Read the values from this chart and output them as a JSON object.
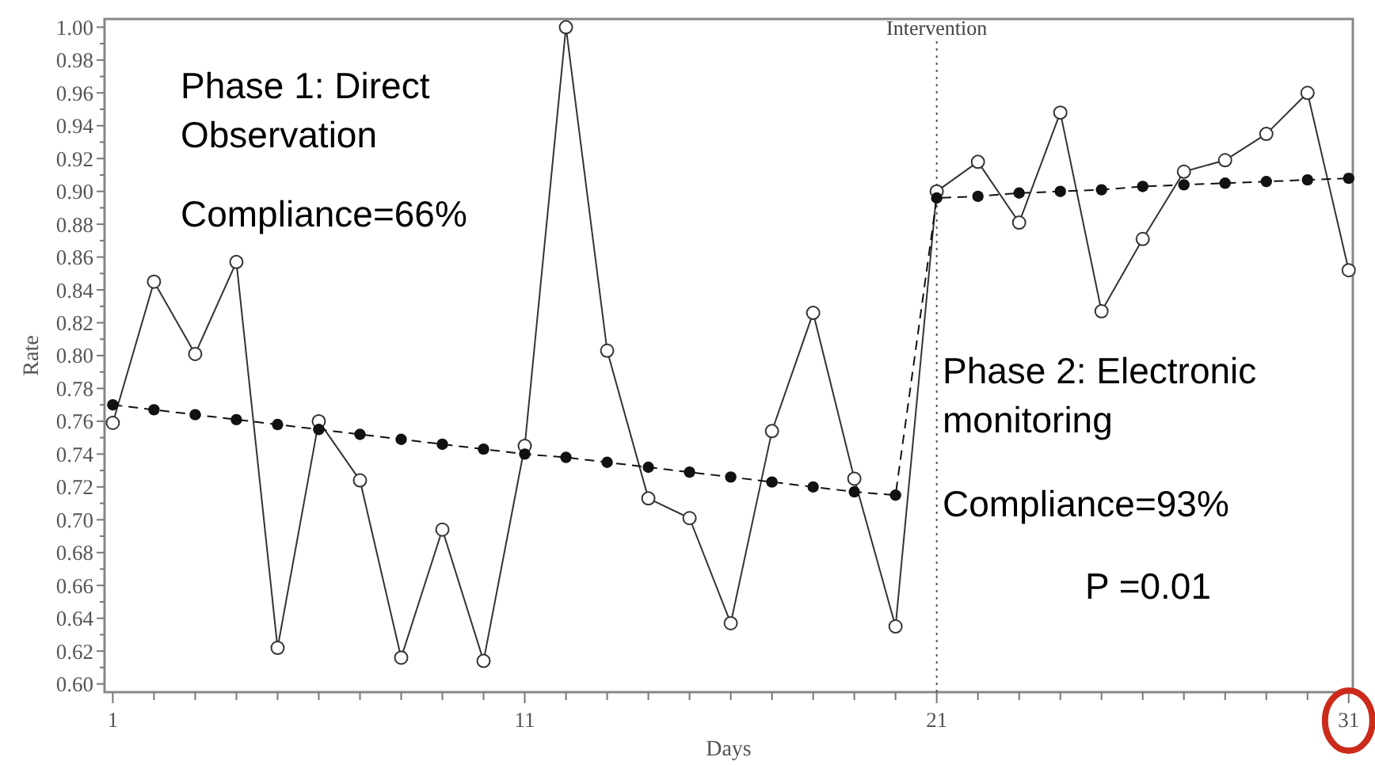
{
  "chart_data": {
    "type": "line",
    "xlabel": "Days",
    "ylabel": "Rate",
    "x": [
      1,
      2,
      3,
      4,
      5,
      6,
      7,
      8,
      9,
      10,
      11,
      12,
      13,
      14,
      15,
      16,
      17,
      18,
      19,
      20,
      21,
      22,
      23,
      24,
      25,
      26,
      27,
      28,
      29,
      30,
      31
    ],
    "series": [
      {
        "color": "#333333",
        "line_style": "solid",
        "values": [
          0.759,
          0.845,
          0.801,
          0.857,
          0.622,
          0.76,
          0.724,
          0.616,
          0.694,
          0.614,
          0.745,
          1.0,
          0.803,
          0.713,
          0.701,
          0.637,
          0.754,
          0.826,
          0.725,
          0.635,
          0.9,
          0.918,
          0.881,
          0.948,
          0.827,
          0.871,
          0.912,
          0.919,
          0.935,
          0.96,
          0.852
        ]
      },
      {
        "color": "#111111",
        "line_style": "dashed",
        "values": [
          0.77,
          0.767,
          0.764,
          0.761,
          0.758,
          0.755,
          0.752,
          0.749,
          0.746,
          0.743,
          0.74,
          0.738,
          0.735,
          0.732,
          0.729,
          0.726,
          0.723,
          0.72,
          0.717,
          0.715,
          0.896,
          0.897,
          0.899,
          0.9,
          0.901,
          0.903,
          0.904,
          0.905,
          0.906,
          0.907,
          0.908
        ]
      }
    ],
    "marker": "circle",
    "grid": false,
    "xlim": [
      0.8,
      31.1
    ],
    "ylim": [
      0.595,
      1.005
    ],
    "xticks": [
      1,
      {
        "value": 2,
        "label": null
      },
      {
        "value": 3,
        "label": null
      },
      {
        "value": 4,
        "label": null
      },
      {
        "value": 5,
        "label": null
      },
      {
        "value": 6,
        "label": null
      },
      {
        "value": 7,
        "label": null
      },
      {
        "value": 8,
        "label": null
      },
      {
        "value": 9,
        "label": null
      },
      {
        "value": 10,
        "label": null
      },
      11,
      {
        "value": 12,
        "label": null
      },
      {
        "value": 13,
        "label": null
      },
      {
        "value": 14,
        "label": null
      },
      {
        "value": 15,
        "label": null
      },
      {
        "value": 16,
        "label": null
      },
      {
        "value": 17,
        "label": null
      },
      {
        "value": 18,
        "label": null
      },
      {
        "value": 19,
        "label": null
      },
      {
        "value": 20,
        "label": null
      },
      21,
      {
        "value": 22,
        "label": null
      },
      {
        "value": 23,
        "label": null
      },
      {
        "value": 24,
        "label": null
      },
      {
        "value": 25,
        "label": null
      },
      {
        "value": 26,
        "label": null
      },
      {
        "value": 27,
        "label": null
      },
      {
        "value": 28,
        "label": null
      },
      {
        "value": 29,
        "label": null
      },
      {
        "value": 30,
        "label": null
      },
      31
    ],
    "yticks": [
      {
        "value": 0.6,
        "label": "0.60"
      },
      {
        "value": 0.62,
        "label": "0.62"
      },
      {
        "value": 0.64,
        "label": "0.64"
      },
      {
        "value": 0.66,
        "label": "0.66"
      },
      {
        "value": 0.68,
        "label": "0.68"
      },
      {
        "value": 0.7,
        "label": "0.70"
      },
      {
        "value": 0.72,
        "label": "0.72"
      },
      {
        "value": 0.74,
        "label": "0.74"
      },
      {
        "value": 0.76,
        "label": "0.76"
      },
      {
        "value": 0.78,
        "label": "0.78"
      },
      {
        "value": 0.8,
        "label": "0.80"
      },
      {
        "value": 0.82,
        "label": "0.82"
      },
      {
        "value": 0.84,
        "label": "0.84"
      },
      {
        "value": 0.86,
        "label": "0.86"
      },
      {
        "value": 0.88,
        "label": "0.88"
      },
      {
        "value": 0.9,
        "label": "0.90"
      },
      {
        "value": 0.92,
        "label": "0.92"
      },
      {
        "value": 0.94,
        "label": "0.94"
      },
      {
        "value": 0.96,
        "label": "0.96"
      },
      {
        "value": 0.98,
        "label": "0.98"
      },
      {
        "value": 1.0,
        "label": "1.00"
      }
    ],
    "ref_lines": [
      {
        "axis": "x",
        "value": 21,
        "label": "Intervention",
        "line_style": "dotted",
        "color": "#555555"
      }
    ],
    "annotations": [
      "Phase 1: Direct Observation",
      "Compliance=66%",
      "Phase 2: Electronic monitoring",
      "Compliance=93%",
      "P =0.01"
    ]
  }
}
